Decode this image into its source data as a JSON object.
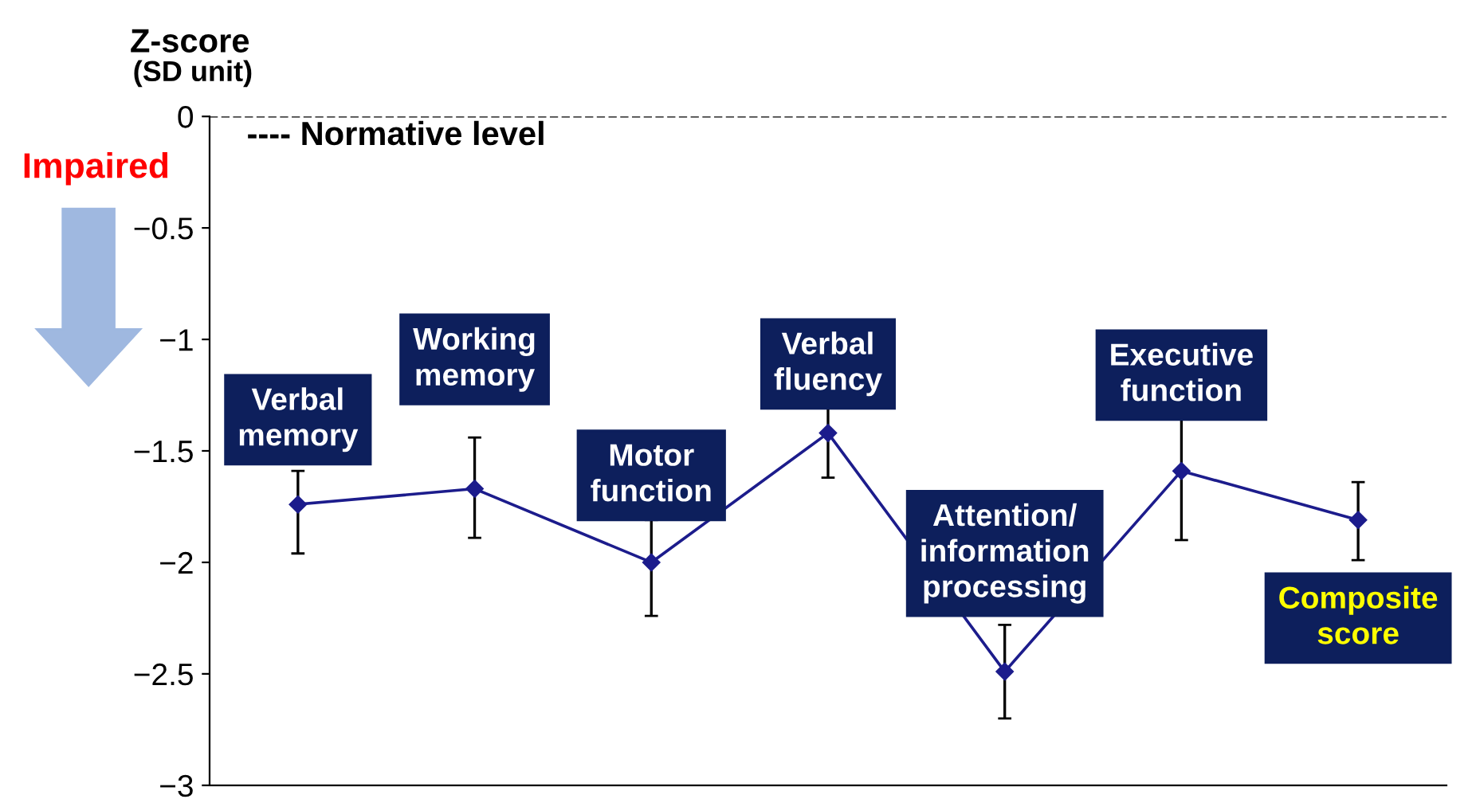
{
  "chart_data": {
    "type": "line",
    "title": "Z-score",
    "subtitle": "(SD unit)",
    "categories": [
      "Verbal\nmemory",
      "Working\nmemory",
      "Motor\nfunction",
      "Verbal\nfluency",
      "Attention/\ninformation\nprocessing",
      "Executive\nfunction",
      "Composite\nscore"
    ],
    "series": [
      {
        "color": "#1c1c8c",
        "values": [
          -1.74,
          -1.67,
          -2.0,
          -1.42,
          -2.49,
          -1.59,
          -1.81
        ],
        "errors": [
          [
            -1.96,
            -1.59
          ],
          [
            -1.89,
            -1.44
          ],
          [
            -2.24,
            -1.81
          ],
          [
            -1.62,
            -1.22
          ],
          [
            -2.7,
            -2.28
          ],
          [
            -1.9,
            -1.28
          ],
          [
            -1.99,
            -1.64
          ]
        ]
      }
    ],
    "marker": "diamond",
    "line_style": "solid",
    "ylim": [
      -3,
      0
    ],
    "yticks": [
      0,
      {
        "value": -0.5,
        "label": "−0.5"
      },
      {
        "value": -1,
        "label": "−1"
      },
      {
        "value": -1.5,
        "label": "−1.5"
      },
      {
        "value": -2,
        "label": "−2"
      },
      {
        "value": -2.5,
        "label": "−2.5"
      },
      {
        "value": -3,
        "label": "−3"
      }
    ],
    "tick_labels": "y",
    "grid": false,
    "ref_lines": [
      {
        "axis": "y",
        "value": 0,
        "label": "---- Normative level",
        "line_style": "dashed",
        "color": "#000000"
      }
    ],
    "annotations": [
      "Impaired"
    ]
  }
}
